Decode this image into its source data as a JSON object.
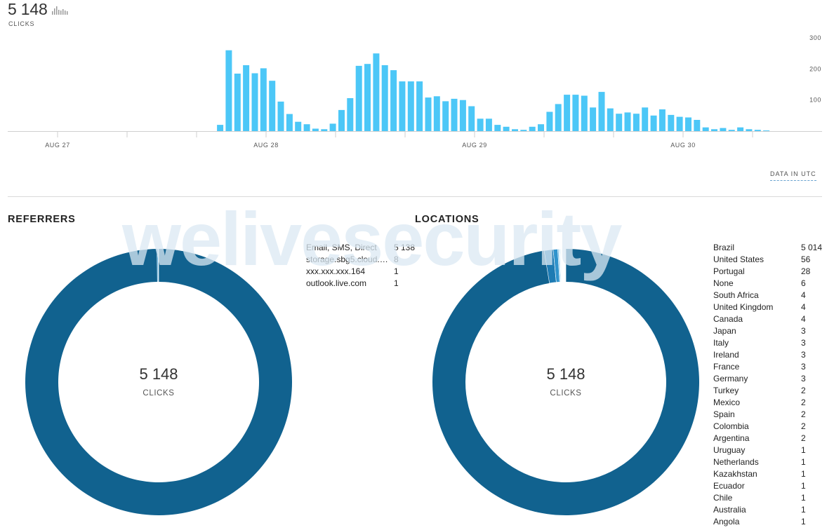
{
  "summary": {
    "total": "5 148",
    "total_label": "CLICKS",
    "trend_icon": "bar-chart-icon"
  },
  "chart_data": {
    "type": "bar",
    "x_labels": [
      "AUG 27",
      "AUG 28",
      "AUG 29",
      "AUG 30"
    ],
    "y_ticks": [
      300,
      200,
      100
    ],
    "ylim": [
      0,
      300
    ],
    "color": "#4cc7f7",
    "values": [
      0,
      0,
      0,
      0,
      0,
      0,
      0,
      0,
      0,
      0,
      0,
      0,
      0,
      0,
      0,
      0,
      0,
      0,
      0,
      0,
      0,
      0,
      0,
      0,
      20,
      260,
      185,
      212,
      186,
      202,
      162,
      95,
      55,
      30,
      22,
      8,
      6,
      24,
      68,
      106,
      210,
      216,
      250,
      212,
      196,
      160,
      160,
      160,
      108,
      112,
      96,
      104,
      100,
      80,
      40,
      40,
      20,
      14,
      6,
      4,
      14,
      22,
      62,
      87,
      117,
      117,
      114,
      76,
      126,
      73,
      56,
      60,
      56,
      76,
      50,
      70,
      52,
      46,
      44,
      36,
      12,
      6,
      10,
      4,
      12,
      6,
      4,
      2
    ]
  },
  "utc_label": "DATA IN UTC",
  "watermark": "welivesecurity",
  "referrers": {
    "title": "REFERRERS",
    "center_value": "5 148",
    "center_label": "CLICKS",
    "colors": [
      "#11628f",
      "#4da8dc",
      "#9fd6f2",
      "#d7eef9"
    ],
    "items": [
      {
        "name": "Email, SMS, Direct",
        "value": "5 138",
        "count": 5138
      },
      {
        "name": "storage.sbg5.cloud.ovh.net",
        "value": "8",
        "count": 8
      },
      {
        "name": "xxx.xxx.xxx.164",
        "value": "1",
        "count": 1
      },
      {
        "name": "outlook.live.com",
        "value": "1",
        "count": 1
      }
    ]
  },
  "locations": {
    "title": "LOCATIONS",
    "center_value": "5 148",
    "center_label": "CLICKS",
    "colors": [
      "#11628f",
      "#1e7bb3",
      "#2f93cc",
      "#4da8dc",
      "#7cc3e9",
      "#a8daf3",
      "#cfeaf8"
    ],
    "items": [
      {
        "name": "Brazil",
        "value": "5 014",
        "count": 5014
      },
      {
        "name": "United States",
        "value": "56",
        "count": 56
      },
      {
        "name": "Portugal",
        "value": "28",
        "count": 28
      },
      {
        "name": "None",
        "value": "6",
        "count": 6
      },
      {
        "name": "South Africa",
        "value": "4",
        "count": 4
      },
      {
        "name": "United Kingdom",
        "value": "4",
        "count": 4
      },
      {
        "name": "Canada",
        "value": "4",
        "count": 4
      },
      {
        "name": "Japan",
        "value": "3",
        "count": 3
      },
      {
        "name": "Italy",
        "value": "3",
        "count": 3
      },
      {
        "name": "Ireland",
        "value": "3",
        "count": 3
      },
      {
        "name": "France",
        "value": "3",
        "count": 3
      },
      {
        "name": "Germany",
        "value": "3",
        "count": 3
      },
      {
        "name": "Turkey",
        "value": "2",
        "count": 2
      },
      {
        "name": "Mexico",
        "value": "2",
        "count": 2
      },
      {
        "name": "Spain",
        "value": "2",
        "count": 2
      },
      {
        "name": "Colombia",
        "value": "2",
        "count": 2
      },
      {
        "name": "Argentina",
        "value": "2",
        "count": 2
      },
      {
        "name": "Uruguay",
        "value": "1",
        "count": 1
      },
      {
        "name": "Netherlands",
        "value": "1",
        "count": 1
      },
      {
        "name": "Kazakhstan",
        "value": "1",
        "count": 1
      },
      {
        "name": "Ecuador",
        "value": "1",
        "count": 1
      },
      {
        "name": "Chile",
        "value": "1",
        "count": 1
      },
      {
        "name": "Australia",
        "value": "1",
        "count": 1
      },
      {
        "name": "Angola",
        "value": "1",
        "count": 1
      }
    ]
  }
}
